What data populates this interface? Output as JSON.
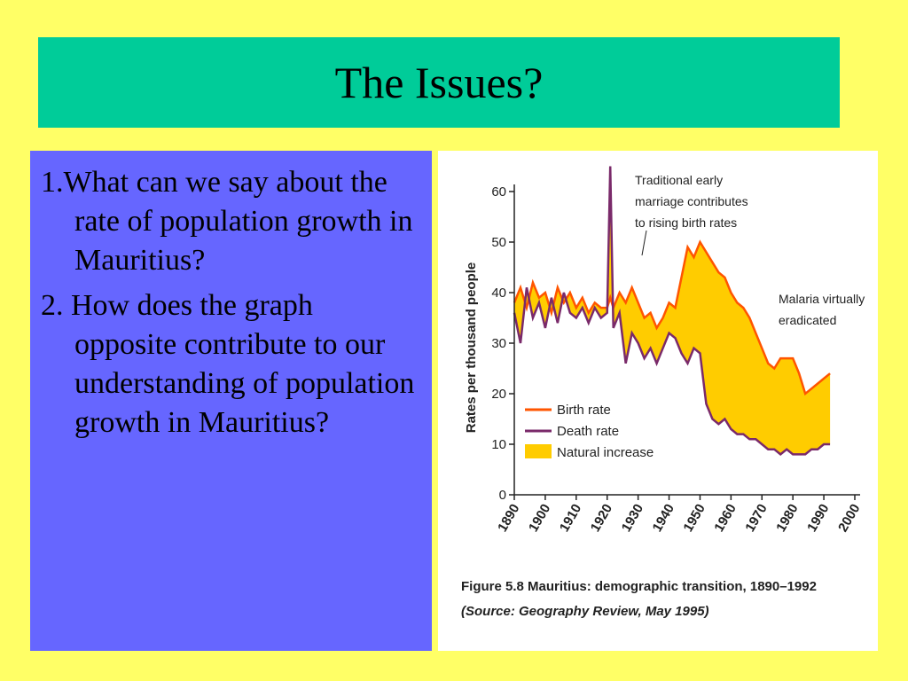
{
  "slide": {
    "title": "The Issues?",
    "questions": [
      "1.What can we say about the rate of population growth in Mauritius?",
      "2. How does the graph opposite contribute to our understanding of population growth in Mauritius?"
    ]
  },
  "colors": {
    "background": "#ffff66",
    "title_bar": "#00cc99",
    "text_panel": "#6666ff",
    "birth_rate": "#ff5500",
    "death_rate": "#7a2a6a",
    "natural_increase": "#ffcc00"
  },
  "chart_data": {
    "type": "line",
    "ylabel": "Rates per thousand people",
    "xlabel": "",
    "xlim": [
      1890,
      2000
    ],
    "ylim": [
      0,
      60
    ],
    "x_ticks": [
      "1890",
      "1900",
      "1910",
      "1920",
      "1930",
      "1940",
      "1950",
      "1960",
      "1970",
      "1980",
      "1990",
      "2000"
    ],
    "y_ticks": [
      "0",
      "10",
      "20",
      "30",
      "40",
      "50",
      "60"
    ],
    "series": [
      {
        "name": "Birth rate",
        "x": [
          1890,
          1892,
          1894,
          1896,
          1898,
          1900,
          1902,
          1904,
          1906,
          1908,
          1910,
          1912,
          1914,
          1916,
          1918,
          1920,
          1921,
          1922,
          1924,
          1926,
          1928,
          1930,
          1932,
          1934,
          1936,
          1938,
          1940,
          1942,
          1944,
          1946,
          1948,
          1950,
          1952,
          1954,
          1956,
          1958,
          1960,
          1962,
          1964,
          1966,
          1968,
          1970,
          1972,
          1974,
          1976,
          1978,
          1980,
          1982,
          1984,
          1986,
          1988,
          1990,
          1992
        ],
        "values": [
          38,
          41,
          37,
          42,
          39,
          40,
          36,
          41,
          38,
          40,
          37,
          39,
          36,
          38,
          37,
          37,
          39,
          37,
          40,
          38,
          41,
          38,
          35,
          36,
          33,
          35,
          38,
          37,
          43,
          49,
          47,
          50,
          48,
          46,
          44,
          43,
          40,
          38,
          37,
          35,
          32,
          29,
          26,
          25,
          27,
          27,
          27,
          24,
          20,
          21,
          22,
          23,
          24
        ]
      },
      {
        "name": "Death rate",
        "x": [
          1890,
          1892,
          1894,
          1896,
          1898,
          1900,
          1902,
          1904,
          1906,
          1908,
          1910,
          1912,
          1914,
          1916,
          1918,
          1920,
          1921,
          1922,
          1924,
          1926,
          1928,
          1930,
          1932,
          1934,
          1936,
          1938,
          1940,
          1942,
          1944,
          1946,
          1948,
          1950,
          1952,
          1954,
          1956,
          1958,
          1960,
          1962,
          1964,
          1966,
          1968,
          1970,
          1972,
          1974,
          1976,
          1978,
          1980,
          1982,
          1984,
          1986,
          1988,
          1990,
          1992
        ],
        "values": [
          36,
          30,
          41,
          35,
          38,
          33,
          39,
          34,
          40,
          36,
          35,
          37,
          34,
          37,
          35,
          36,
          65,
          33,
          36,
          26,
          32,
          30,
          27,
          29,
          26,
          29,
          32,
          31,
          28,
          26,
          29,
          28,
          18,
          15,
          14,
          15,
          13,
          12,
          12,
          11,
          11,
          10,
          9,
          9,
          8,
          9,
          8,
          8,
          8,
          9,
          9,
          10,
          10
        ]
      }
    ],
    "legend": {
      "placement": "lower-left",
      "entries": [
        "Birth rate",
        "Death rate",
        "Natural increase"
      ]
    },
    "annotations": [
      "Traditional early marriage contributes to rising birth rates",
      "Malaria virtually eradicated"
    ],
    "caption_line1": "Figure 5.8  Mauritius: demographic transition, 1890–1992",
    "caption_line2": "(Source: Geography Review, May 1995)",
    "grid": false
  }
}
